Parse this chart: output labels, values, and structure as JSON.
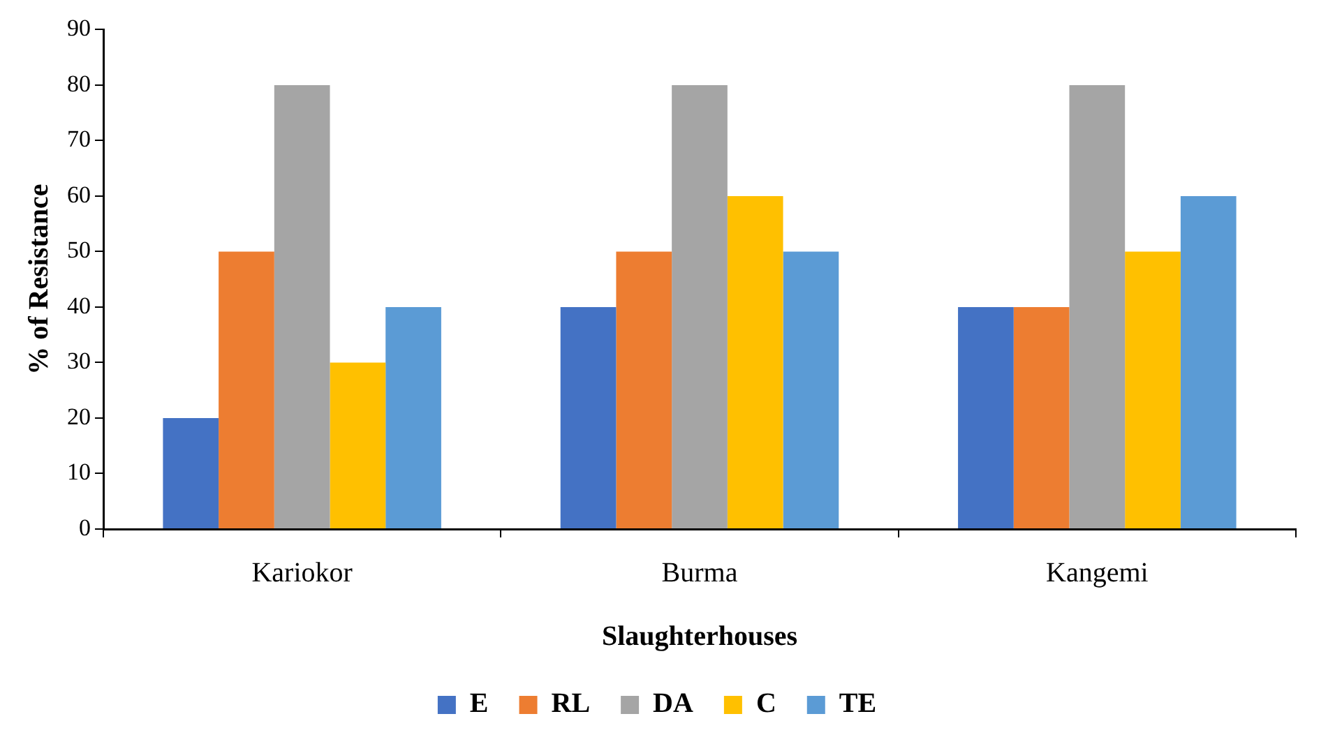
{
  "chart_data": {
    "type": "bar",
    "xlabel": "Slaughterhouses",
    "ylabel": "% of Resistance",
    "categories": [
      "Kariokor",
      "Burma",
      "Kangemi"
    ],
    "series": [
      {
        "name": "E",
        "color": "#4472c4",
        "values": [
          20,
          40,
          40
        ]
      },
      {
        "name": "RL",
        "color": "#ed7d31",
        "values": [
          50,
          50,
          40
        ]
      },
      {
        "name": "DA",
        "color": "#a5a5a5",
        "values": [
          80,
          80,
          80
        ]
      },
      {
        "name": "C",
        "color": "#ffc000",
        "values": [
          30,
          60,
          50
        ]
      },
      {
        "name": "TE",
        "color": "#5b9bd5",
        "values": [
          40,
          50,
          60
        ]
      }
    ],
    "ylim": [
      0,
      90
    ],
    "yticks": [
      0,
      10,
      20,
      30,
      40,
      50,
      60,
      70,
      80,
      90
    ],
    "legend": "bottom"
  }
}
